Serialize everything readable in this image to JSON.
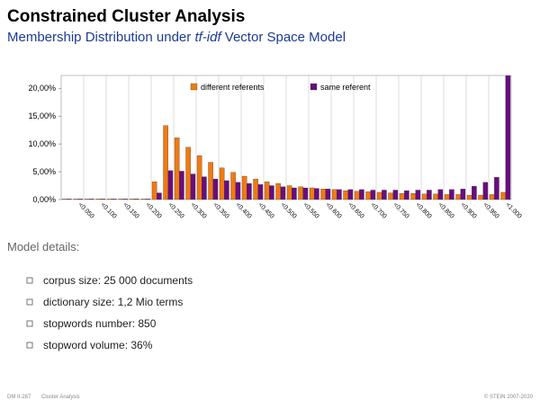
{
  "chart_data": {
    "type": "bar",
    "title": "Constrained Cluster Analysis",
    "subtitle": [
      "Membership Distribution under ",
      "tf-idf",
      " Vector Space Model"
    ],
    "categories": [
      null,
      "<0.050",
      null,
      "<0.100",
      null,
      "<0.150",
      null,
      "<0.200",
      null,
      "<0.250",
      null,
      "<0.300",
      null,
      "<0.350",
      null,
      "<0.400",
      null,
      "<0.450",
      null,
      "<0.500",
      null,
      "<0.550",
      null,
      "<0.600",
      null,
      "<0.650",
      null,
      "<0.700",
      null,
      "<0.750",
      null,
      "<0.800",
      null,
      "<0.850",
      null,
      "<0.900",
      null,
      "<0.950",
      null,
      "<1.000"
    ],
    "series": [
      {
        "name": "different referents",
        "color": "#f07a10",
        "values": [
          0.1,
          0.1,
          0.1,
          0.1,
          0.1,
          0.1,
          0.1,
          0.1,
          3.2,
          13.3,
          11.1,
          9.4,
          7.9,
          6.7,
          5.7,
          4.9,
          4.2,
          3.7,
          3.2,
          2.9,
          2.5,
          2.3,
          2.1,
          1.9,
          1.8,
          1.6,
          1.5,
          1.4,
          1.3,
          1.2,
          1.1,
          1.1,
          1.0,
          1.0,
          0.9,
          0.9,
          0.8,
          0.8,
          0.9,
          1.3
        ]
      },
      {
        "name": "same referent",
        "color": "#6a0c80",
        "values": [
          0.1,
          0.1,
          0.1,
          0.1,
          0.1,
          0.1,
          0.1,
          0.1,
          1.2,
          5.2,
          5.1,
          4.6,
          4.1,
          3.7,
          3.4,
          3.1,
          2.9,
          2.7,
          2.5,
          2.3,
          2.1,
          2.1,
          2.0,
          1.9,
          1.8,
          1.8,
          1.8,
          1.7,
          1.7,
          1.7,
          1.6,
          1.7,
          1.7,
          1.8,
          1.8,
          1.9,
          2.4,
          3.1,
          4.0,
          22.3
        ]
      }
    ],
    "ylim": [
      0,
      22.3
    ],
    "yticks": [
      {
        "value": 0,
        "label": "0,00%"
      },
      {
        "value": 5,
        "label": "5,00%"
      },
      {
        "value": 10,
        "label": "10,00%"
      },
      {
        "value": 15,
        "label": "15,00%"
      },
      {
        "value": 20,
        "label": "20,00%"
      }
    ],
    "legend": "top"
  },
  "details": {
    "heading": "Model details:",
    "items": [
      "corpus size: 25 000 documents",
      "dictionary size: 1,2 Mio terms",
      "stopwords number: 850",
      "stopword volume: 36%"
    ]
  },
  "footer": {
    "left": "DM II-287",
    "section": "Cluster Analysis",
    "right": "© STEIN 2007-2020"
  }
}
